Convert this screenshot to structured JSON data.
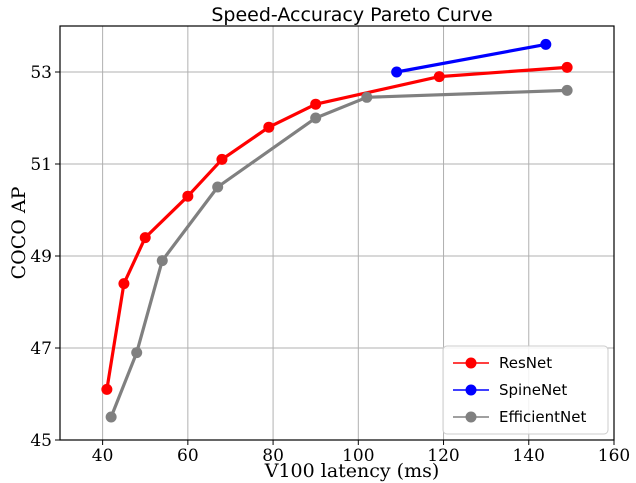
{
  "chart_data": {
    "type": "line",
    "title": "Speed-Accuracy Pareto Curve",
    "xlabel": "V100 latency (ms)",
    "ylabel": "COCO AP",
    "xlim": [
      30,
      160
    ],
    "ylim": [
      45,
      54
    ],
    "xticks": [
      40,
      60,
      80,
      100,
      120,
      140,
      160
    ],
    "yticks": [
      45,
      47,
      49,
      51,
      53
    ],
    "grid": true,
    "legend_position": "lower-right",
    "series": [
      {
        "name": "ResNet",
        "color": "#ff0000",
        "x": [
          41,
          45,
          50,
          60,
          68,
          79,
          90,
          119,
          149
        ],
        "y": [
          46.1,
          48.4,
          49.4,
          50.3,
          51.1,
          51.8,
          52.3,
          52.9,
          53.1
        ]
      },
      {
        "name": "SpineNet",
        "color": "#0000ff",
        "x": [
          109,
          144
        ],
        "y": [
          53.0,
          53.6
        ]
      },
      {
        "name": "EfficientNet",
        "color": "#808080",
        "x": [
          42,
          48,
          54,
          67,
          90,
          102,
          149
        ],
        "y": [
          45.5,
          46.9,
          48.9,
          50.5,
          52.0,
          52.45,
          52.6
        ]
      }
    ]
  }
}
